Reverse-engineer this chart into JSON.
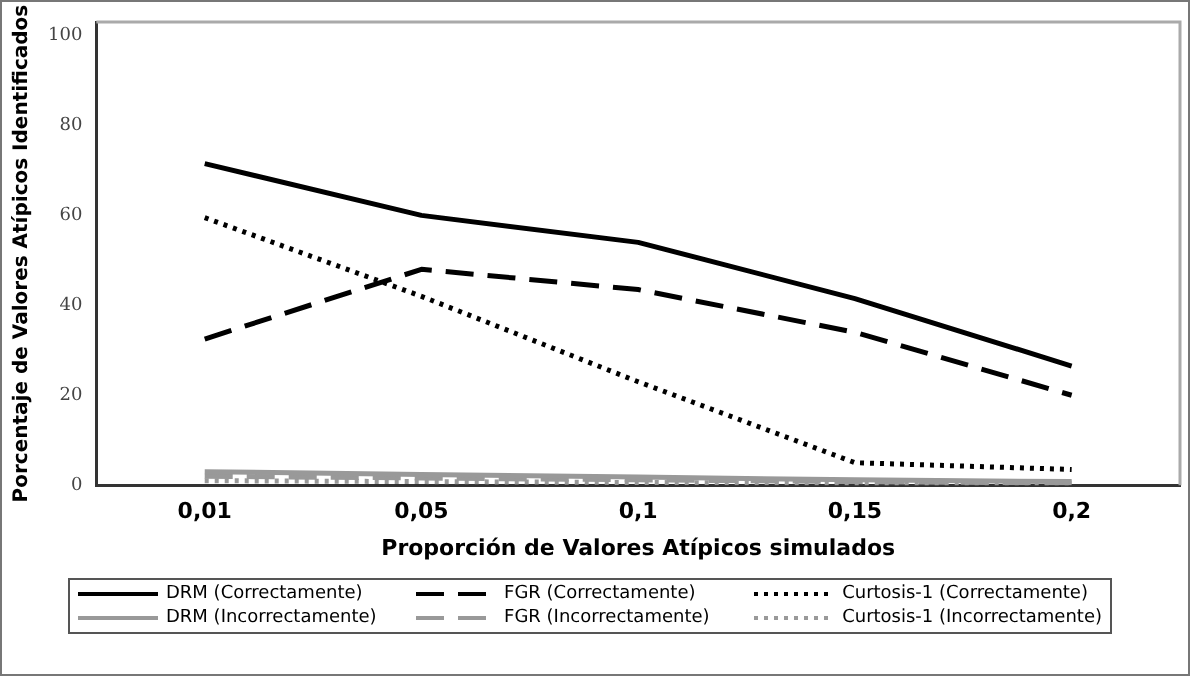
{
  "chart_data": {
    "type": "line",
    "xlabel": "Proporción de Valores Atípicos simulados",
    "ylabel": "Porcentaje de Valores Atípicos Identificados",
    "categories": [
      "0,01",
      "0,05",
      "0,1",
      "0,15",
      "0,2"
    ],
    "ylim": [
      0,
      103
    ],
    "yticks": [
      0,
      20,
      40,
      60,
      80,
      100
    ],
    "grid": false,
    "legend": "bottom",
    "marker": "none",
    "series": [
      {
        "name": "DRM (Correctamente)",
        "color": "#000000",
        "line_style": "solid",
        "values": [
          71.5,
          60,
          54,
          41.5,
          26.5
        ]
      },
      {
        "name": "DRM (Incorrectamente)",
        "color": "#999999",
        "line_style": "solid",
        "values": [
          3,
          2.4,
          1.8,
          1.2,
          0.8
        ]
      },
      {
        "name": "FGR (Correctamente)",
        "color": "#000000",
        "line_style": "dashed",
        "values": [
          32.5,
          48,
          43.5,
          34,
          20
        ]
      },
      {
        "name": "FGR (Incorrectamente)",
        "color": "#999999",
        "line_style": "dashed",
        "values": [
          2,
          1.6,
          1.2,
          0.8,
          0.5
        ]
      },
      {
        "name": "Curtosis-1 (Correctamente)",
        "color": "#000000",
        "line_style": "dotted",
        "values": [
          59.5,
          42,
          23,
          5,
          3.5
        ]
      },
      {
        "name": "Curtosis-1 (Incorrectamente)",
        "color": "#999999",
        "line_style": "dotted",
        "values": [
          1,
          0.8,
          0.6,
          0.4,
          0.3
        ]
      }
    ]
  }
}
